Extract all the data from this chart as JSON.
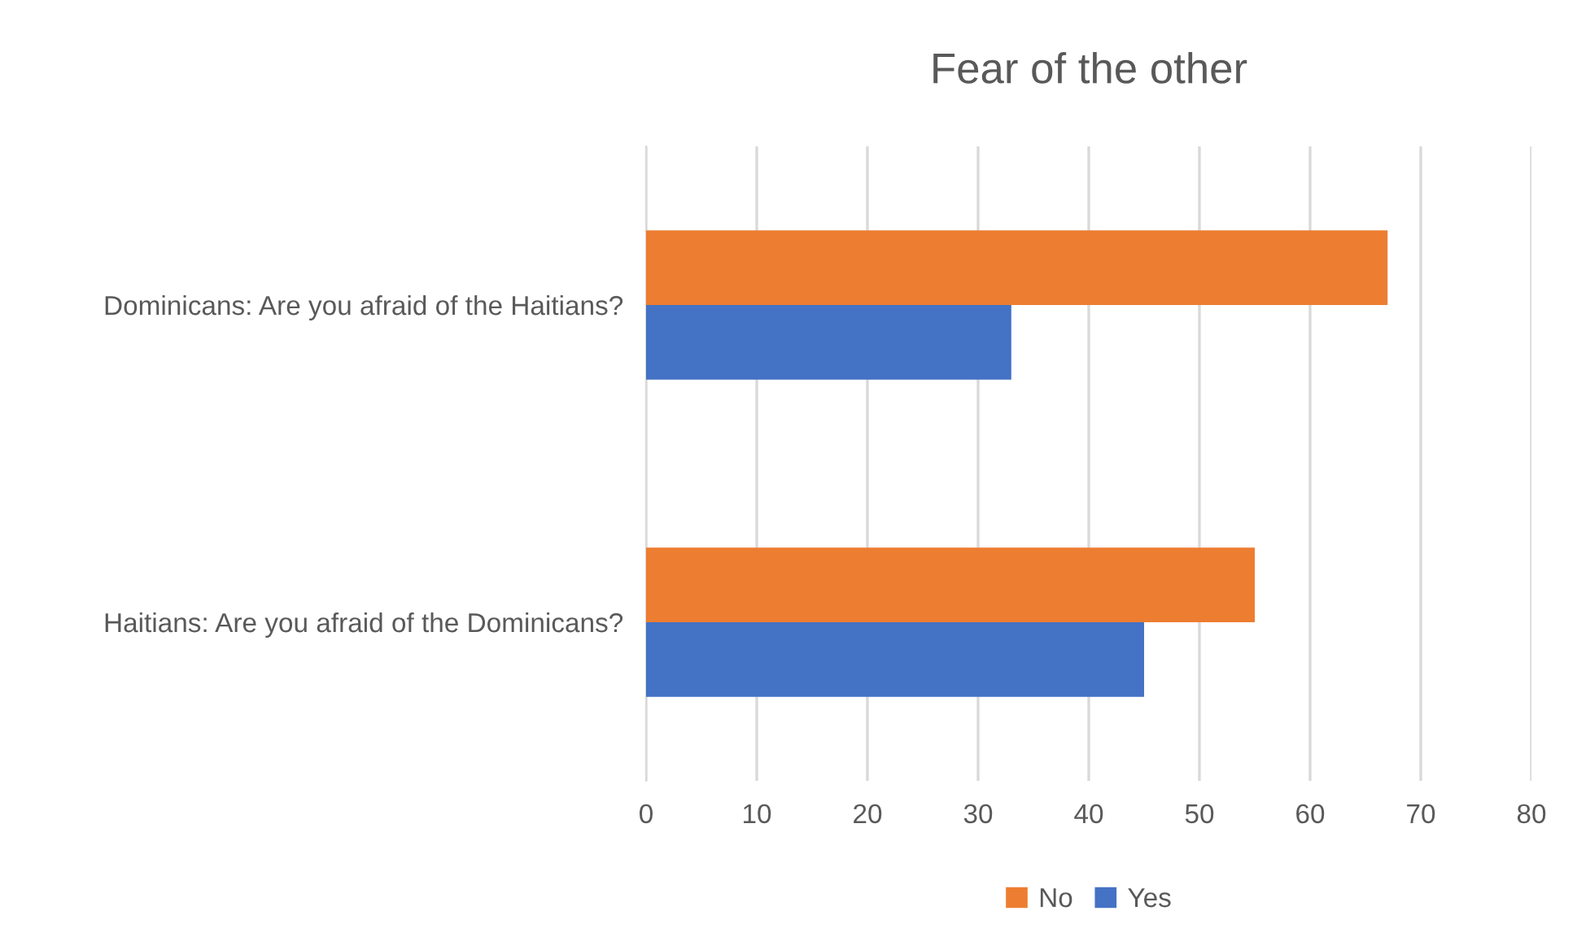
{
  "chart_data": {
    "type": "bar",
    "orientation": "horizontal",
    "title": "Fear of the other",
    "categories": [
      "Dominicans: Are you afraid of the Haitians?",
      "Haitians: Are you afraid of the Dominicans?"
    ],
    "series": [
      {
        "name": "No",
        "color": "#ed7d31",
        "values": [
          67,
          55
        ]
      },
      {
        "name": "Yes",
        "color": "#4472c4",
        "values": [
          33,
          45
        ]
      }
    ],
    "xlim": [
      0,
      80
    ],
    "xticks": [
      0,
      10,
      20,
      30,
      40,
      50,
      60,
      70,
      80
    ],
    "grid": "x",
    "legend": "bottom"
  }
}
